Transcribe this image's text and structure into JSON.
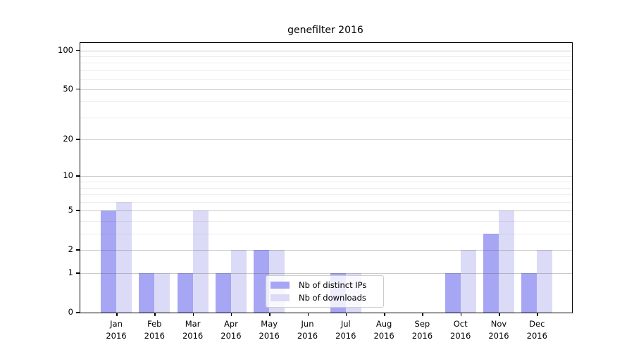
{
  "chart_data": {
    "type": "bar",
    "title": "genefilter 2016",
    "categories": [
      "Jan",
      "Feb",
      "Mar",
      "Apr",
      "May",
      "Jun",
      "Jul",
      "Aug",
      "Sep",
      "Oct",
      "Nov",
      "Dec"
    ],
    "year": "2016",
    "series": [
      {
        "name": "Nb of distinct IPs",
        "color": "#a6a6f4",
        "values": [
          5,
          1,
          1,
          1,
          2,
          0,
          1,
          0,
          0,
          1,
          3,
          1
        ]
      },
      {
        "name": "Nb of downloads",
        "color": "#dbdbf8",
        "values": [
          6,
          1,
          5,
          2,
          2,
          0,
          1,
          0,
          0,
          2,
          5,
          2
        ]
      }
    ],
    "xlabel": "",
    "ylabel": "",
    "yscale": "log10(value+1)",
    "yticks": [
      0,
      1,
      2,
      5,
      10,
      20,
      50,
      100
    ],
    "minor_gridlines": [
      3,
      4,
      6,
      7,
      8,
      9,
      30,
      40,
      60,
      70,
      80,
      90
    ],
    "ylim": [
      0,
      114
    ],
    "grid": true,
    "legend_position": "lower center",
    "colors": {
      "bar_distinct_ips": "#a6a6f4",
      "bar_downloads": "#dbdbf8",
      "axis": "#000000",
      "major_grid": "#c9c9c9",
      "minor_grid": "#e9e9e9",
      "legend_border": "#cccccc",
      "background": "#ffffff"
    }
  }
}
